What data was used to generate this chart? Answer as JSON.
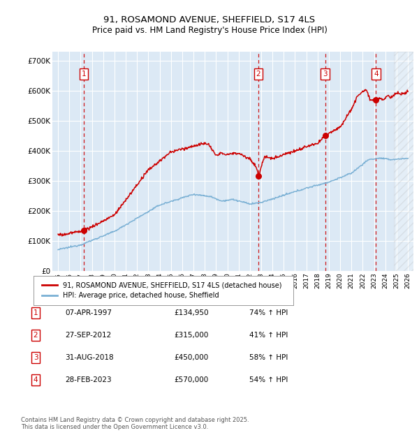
{
  "title_line1": "91, ROSAMOND AVENUE, SHEFFIELD, S17 4LS",
  "title_line2": "Price paid vs. HM Land Registry's House Price Index (HPI)",
  "property_label": "91, ROSAMOND AVENUE, SHEFFIELD, S17 4LS (detached house)",
  "hpi_label": "HPI: Average price, detached house, Sheffield",
  "footer_line1": "Contains HM Land Registry data © Crown copyright and database right 2025.",
  "footer_line2": "This data is licensed under the Open Government Licence v3.0.",
  "sales": [
    {
      "num": 1,
      "date": "07-APR-1997",
      "year": 1997.27,
      "price": 134950,
      "pct": "74%",
      "dir": "↑"
    },
    {
      "num": 2,
      "date": "27-SEP-2012",
      "year": 2012.75,
      "price": 315000,
      "pct": "41%",
      "dir": "↑"
    },
    {
      "num": 3,
      "date": "31-AUG-2018",
      "year": 2018.67,
      "price": 450000,
      "pct": "58%",
      "dir": "↑"
    },
    {
      "num": 4,
      "date": "28-FEB-2023",
      "year": 2023.17,
      "price": 570000,
      "pct": "54%",
      "dir": "↑"
    }
  ],
  "property_color": "#cc0000",
  "hpi_color": "#7ab0d4",
  "background_color": "#ffffff",
  "plot_bg_color": "#dce9f5",
  "grid_color": "#ffffff",
  "sale_line_color": "#cc0000",
  "xlim": [
    1994.5,
    2026.5
  ],
  "ylim": [
    0,
    730000
  ],
  "yticks": [
    0,
    100000,
    200000,
    300000,
    400000,
    500000,
    600000,
    700000
  ],
  "ytick_labels": [
    "£0",
    "£100K",
    "£200K",
    "£300K",
    "£400K",
    "£500K",
    "£600K",
    "£700K"
  ],
  "xticks": [
    1995,
    1996,
    1997,
    1998,
    1999,
    2000,
    2001,
    2002,
    2003,
    2004,
    2005,
    2006,
    2007,
    2008,
    2009,
    2010,
    2011,
    2012,
    2013,
    2014,
    2015,
    2016,
    2017,
    2018,
    2019,
    2020,
    2021,
    2022,
    2023,
    2024,
    2025,
    2026
  ],
  "hatch_start": 2024.75
}
